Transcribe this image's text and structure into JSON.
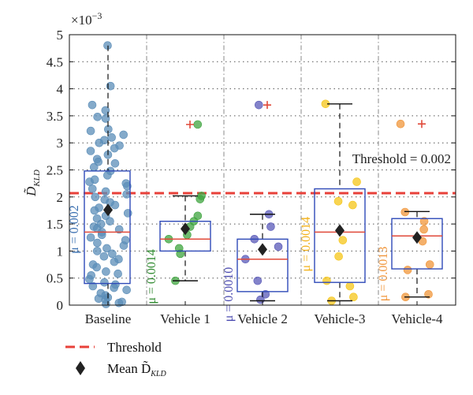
{
  "chart_data": {
    "type": "boxplot",
    "title": "",
    "xlabel": "",
    "ylabel": "D̃",
    "ylabel_subscript": "KLD",
    "y_scale_label": "×10",
    "y_scale_exponent": "−3",
    "ylim": [
      0,
      5
    ],
    "yticks": [
      "0",
      "0.5",
      "1",
      "1.5",
      "2",
      "2.5",
      "3",
      "3.5",
      "4",
      "4.5",
      "5"
    ],
    "grid": "dotted",
    "categories": [
      "Baseline",
      "Vehicle 1",
      "Vehicle 2",
      "Vehicle-3",
      "Vehicle-4"
    ],
    "colors": [
      "#5b8db8",
      "#3fa43f",
      "#5a5ab8",
      "#f5c518",
      "#f0953a"
    ],
    "mu_colors": [
      "#3a6fb0",
      "#2f8a2f",
      "#4b4bb0",
      "#f2b21c",
      "#f0953a"
    ],
    "box_color": "#2f4ab8",
    "median_color": "#e04a3a",
    "boxes": [
      {
        "name": "Baseline",
        "q1": 0.4,
        "median": 1.35,
        "q3": 2.48,
        "whisker_low": 0.0,
        "whisker_high": 4.8,
        "mean": 1.76,
        "mu_label": "μ = 0.002",
        "outliers": []
      },
      {
        "name": "Vehicle 1",
        "q1": 1.0,
        "median": 1.22,
        "q3": 1.55,
        "whisker_low": 0.45,
        "whisker_high": 2.02,
        "mean": 1.41,
        "mu_label": "μ = 0.0014",
        "outliers": [
          3.34
        ]
      },
      {
        "name": "Vehicle 2",
        "q1": 0.25,
        "median": 0.85,
        "q3": 1.22,
        "whisker_low": 0.08,
        "whisker_high": 1.68,
        "mean": 1.03,
        "mu_label": "μ = 0.0010",
        "outliers": [
          3.7
        ]
      },
      {
        "name": "Vehicle-3",
        "q1": 0.42,
        "median": 1.35,
        "q3": 2.15,
        "whisker_low": 0.08,
        "whisker_high": 3.72,
        "mean": 1.38,
        "mu_label": "μ = 0.0014",
        "outliers": []
      },
      {
        "name": "Vehicle-4",
        "q1": 0.67,
        "median": 1.28,
        "q3": 1.6,
        "whisker_low": 0.15,
        "whisker_high": 1.73,
        "mean": 1.25,
        "mu_label": "μ = 0.0013",
        "outliers": [
          3.35
        ]
      }
    ],
    "points": [
      {
        "group": "Baseline",
        "y": [
          4.8,
          4.05,
          3.7,
          3.48,
          3.45,
          3.25,
          3.22,
          3.15,
          3.1,
          3.05,
          3.0,
          2.95,
          2.9,
          2.85,
          2.78,
          2.7,
          2.62,
          2.55,
          2.48,
          2.4,
          2.32,
          2.28,
          2.25,
          2.2,
          2.15,
          2.1,
          2.05,
          2.0,
          1.95,
          1.9,
          1.85,
          1.8,
          1.75,
          1.7,
          1.65,
          1.6,
          1.55,
          1.5,
          1.45,
          1.4,
          1.35,
          1.3,
          1.25,
          1.2,
          1.15,
          1.1,
          1.05,
          1.0,
          0.95,
          0.9,
          0.85,
          0.8,
          0.75,
          0.7,
          0.62,
          0.55,
          0.48,
          0.42,
          0.38,
          0.32,
          0.28,
          0.22,
          0.18,
          0.14,
          0.1,
          0.06,
          0.02,
          3.6,
          2.65,
          1.42,
          0.58,
          0.35,
          0.12,
          0.04
        ]
      },
      {
        "group": "Vehicle 1",
        "y": [
          3.34,
          2.02,
          1.96,
          1.65,
          1.55,
          1.45,
          1.3,
          1.22,
          1.05,
          0.95,
          0.45
        ]
      },
      {
        "group": "Vehicle 2",
        "y": [
          3.7,
          1.68,
          1.45,
          1.22,
          1.08,
          0.85,
          0.45,
          0.2,
          0.1
        ]
      },
      {
        "group": "Vehicle-3",
        "y": [
          3.72,
          2.28,
          1.92,
          1.85,
          1.2,
          0.9,
          0.45,
          0.35,
          0.15,
          0.08
        ]
      },
      {
        "group": "Vehicle-4",
        "y": [
          3.35,
          1.72,
          1.55,
          1.4,
          1.18,
          0.75,
          0.65,
          0.2,
          0.15
        ]
      }
    ],
    "threshold": {
      "value": 2.07,
      "label": "Threshold = 0.002",
      "color": "#e8413a"
    },
    "legend": [
      {
        "label": "Threshold",
        "marker": "dashed-line"
      },
      {
        "label": "Mean D̃",
        "subscript": "KLD",
        "marker": "diamond"
      }
    ],
    "legend_position": "bottom-left"
  }
}
